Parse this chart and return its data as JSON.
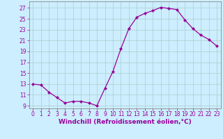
{
  "x": [
    0,
    1,
    2,
    3,
    4,
    5,
    6,
    7,
    8,
    9,
    10,
    11,
    12,
    13,
    14,
    15,
    16,
    17,
    18,
    19,
    20,
    21,
    22,
    23
  ],
  "y": [
    13,
    12.8,
    11.5,
    10.5,
    9.5,
    9.8,
    9.8,
    9.5,
    9.0,
    12.2,
    15.3,
    19.5,
    23.2,
    25.3,
    26.0,
    26.5,
    27.1,
    26.9,
    26.7,
    24.8,
    23.2,
    22.0,
    21.2,
    20.0
  ],
  "line_color": "#990099",
  "marker": "D",
  "marker_size": 2,
  "bg_color": "#cceeff",
  "grid_color": "#aacccc",
  "xlabel": "Windchill (Refroidissement éolien,°C)",
  "xlim": [
    -0.5,
    23.5
  ],
  "ylim": [
    8.5,
    28.2
  ],
  "yticks": [
    9,
    11,
    13,
    15,
    17,
    19,
    21,
    23,
    25,
    27
  ],
  "xticks": [
    0,
    1,
    2,
    3,
    4,
    5,
    6,
    7,
    8,
    9,
    10,
    11,
    12,
    13,
    14,
    15,
    16,
    17,
    18,
    19,
    20,
    21,
    22,
    23
  ],
  "tick_fontsize": 5.5,
  "label_fontsize": 6.5
}
